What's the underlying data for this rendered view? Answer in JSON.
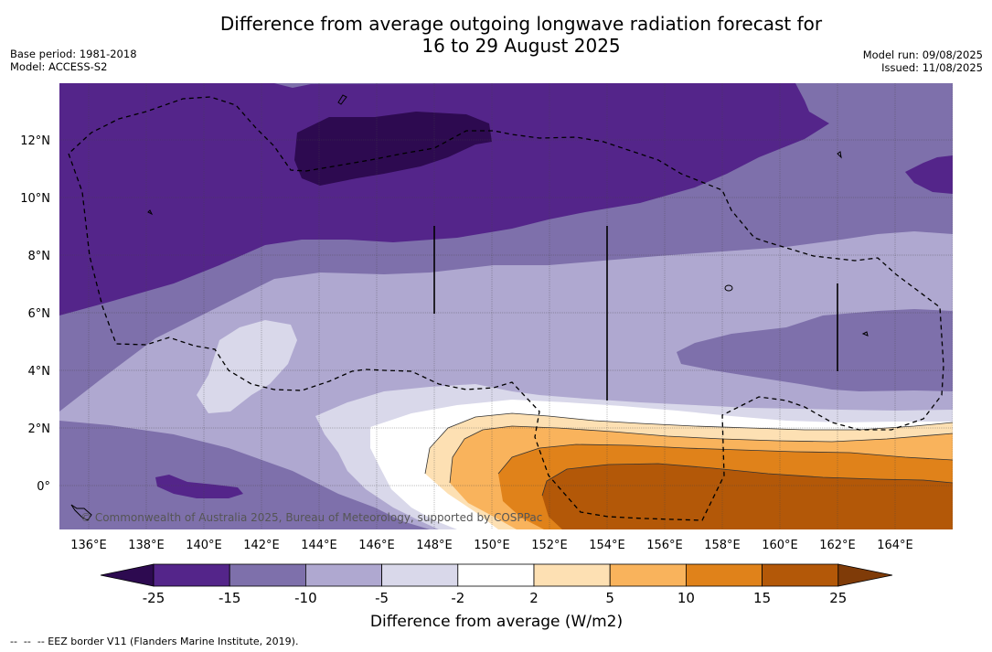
{
  "title": {
    "line1": "Difference from average outgoing longwave radiation forecast for",
    "line2": "16 to 29 August 2025"
  },
  "meta_left": {
    "base_period": "Base period: 1981-2018",
    "model": "Model: ACCESS-S2"
  },
  "meta_right": {
    "model_run": "Model run: 09/08/2025",
    "issued": "Issued: 11/08/2025"
  },
  "map": {
    "copyright": "© Commonwealth of Australia 2025, Bureau of Meteorology, supported by COSPPac",
    "lon_ticks": [
      "136°E",
      "138°E",
      "140°E",
      "142°E",
      "144°E",
      "146°E",
      "148°E",
      "150°E",
      "152°E",
      "154°E",
      "156°E",
      "158°E",
      "160°E",
      "162°E",
      "164°E"
    ],
    "lat_ticks": [
      "12°N",
      "10°N",
      "8°N",
      "6°N",
      "4°N",
      "2°N",
      "0°"
    ]
  },
  "colorbar": {
    "ticks": [
      "-25",
      "-15",
      "-10",
      "-5",
      "-2",
      "2",
      "5",
      "10",
      "15",
      "25"
    ],
    "colors": [
      "#2d0a50",
      "#54258a",
      "#7e70ab",
      "#afa8d0",
      "#d9d8ea",
      "#ffffff",
      "#fde0b3",
      "#f9b35c",
      "#e0821a",
      "#b35808",
      "#7f3b08"
    ],
    "label": "Difference from average (W/m2)"
  },
  "footnote": "--  --  -- EEZ border V11 (Flanders Marine Institute, 2019)."
}
